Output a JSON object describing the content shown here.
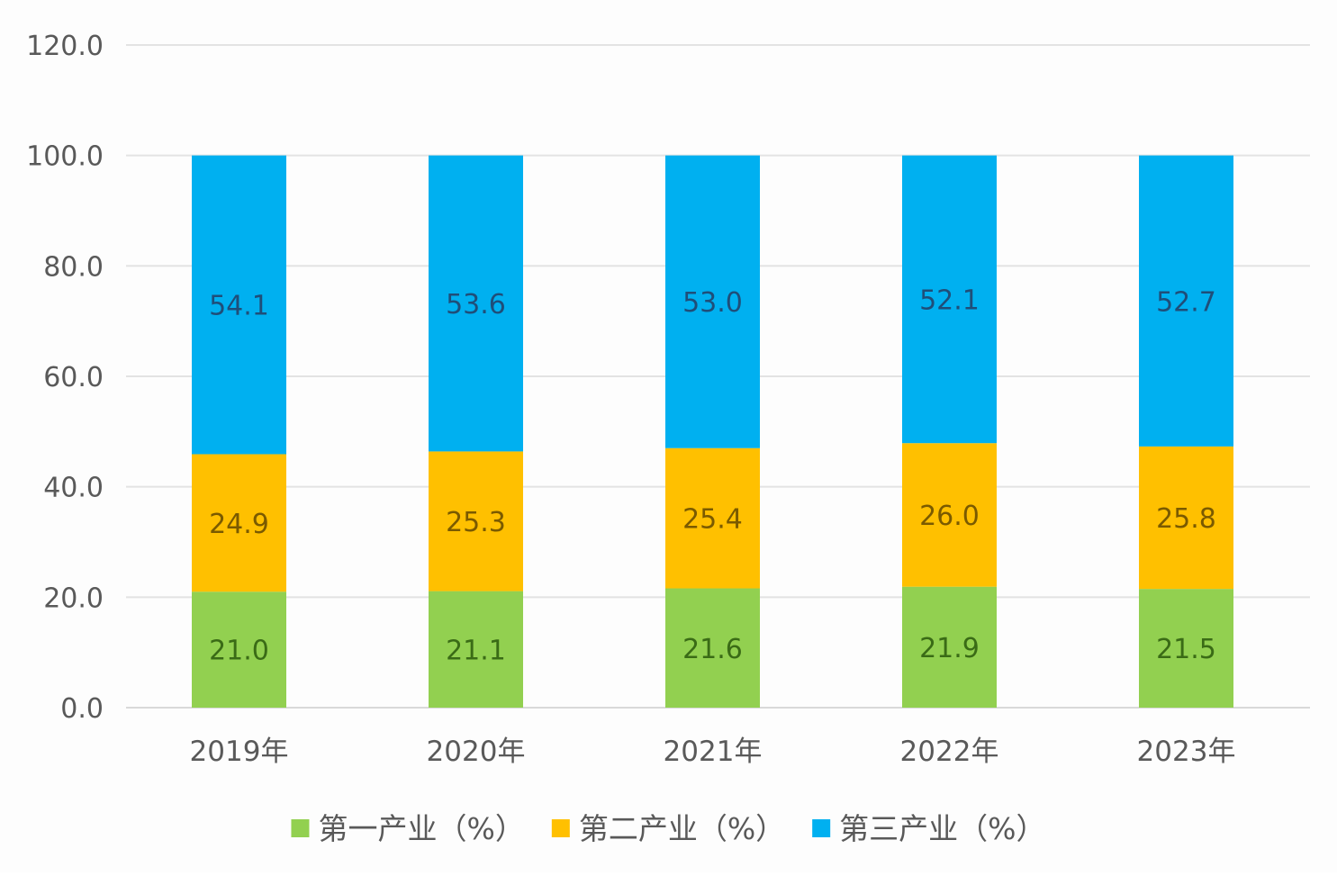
{
  "chart_data": {
    "type": "bar",
    "stacked": true,
    "categories": [
      "2019年",
      "2020年",
      "2021年",
      "2022年",
      "2023年"
    ],
    "series": [
      {
        "name": "第一产业（%）",
        "values": [
          21.0,
          21.1,
          21.6,
          21.9,
          21.5
        ],
        "color": "#92d050",
        "label_color": "#3a6b16"
      },
      {
        "name": "第二产业（%）",
        "values": [
          24.9,
          25.3,
          25.4,
          26.0,
          25.8
        ],
        "color": "#ffc000",
        "label_color": "#7a5a00"
      },
      {
        "name": "第三产业（%）",
        "values": [
          54.1,
          53.6,
          53.0,
          52.1,
          52.7
        ],
        "color": "#00b0f0",
        "label_color": "#1f4e79"
      }
    ],
    "value_labels": [
      [
        "21.0",
        "21.1",
        "21.6",
        "21.9",
        "21.5"
      ],
      [
        "24.9",
        "25.3",
        "25.4",
        "26.0",
        "25.8"
      ],
      [
        "54.1",
        "53.6",
        "53.0",
        "52.1",
        "52.7"
      ]
    ],
    "y_ticks": [
      "0.0",
      "20.0",
      "40.0",
      "60.0",
      "80.0",
      "100.0",
      "120.0"
    ],
    "ylim": [
      0,
      120
    ],
    "grid": true,
    "legend_position": "bottom",
    "title": "",
    "xlabel": "",
    "ylabel": ""
  }
}
